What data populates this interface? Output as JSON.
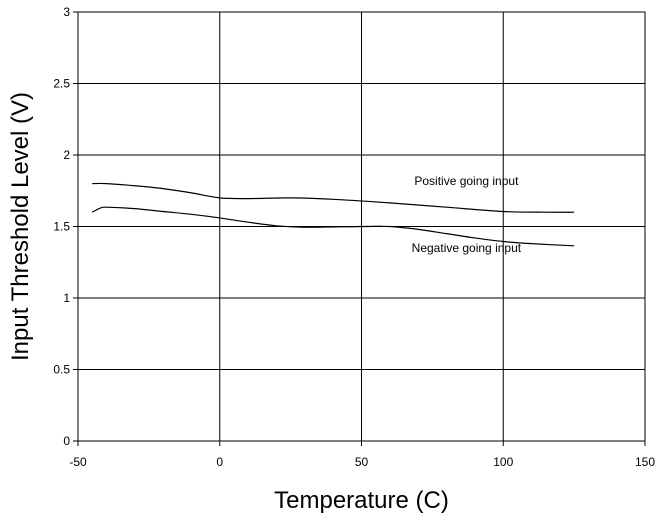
{
  "chart_data": {
    "type": "line",
    "xlabel": "Temperature (C)",
    "ylabel": "Input Threshold Level (V)",
    "xlim": [
      -50,
      150
    ],
    "ylim": [
      0,
      3
    ],
    "xticks": [
      "-50",
      "0",
      "50",
      "100",
      "150"
    ],
    "yticks": [
      "0",
      "0.5",
      "1",
      "1.5",
      "2",
      "2.5",
      "3"
    ],
    "grid": true,
    "series": [
      {
        "name": "Positive going input",
        "x": [
          -45,
          -40,
          -30,
          -20,
          -10,
          0,
          10,
          25,
          40,
          60,
          80,
          100,
          115,
          125
        ],
        "y": [
          1.8,
          1.8,
          1.785,
          1.765,
          1.735,
          1.7,
          1.695,
          1.7,
          1.69,
          1.665,
          1.635,
          1.605,
          1.6,
          1.6
        ]
      },
      {
        "name": "Negative going input",
        "x": [
          -45,
          -42,
          -40,
          -30,
          -20,
          -10,
          0,
          10,
          20,
          30,
          50,
          60,
          70,
          80,
          90,
          100,
          110,
          125
        ],
        "y": [
          1.6,
          1.63,
          1.635,
          1.625,
          1.605,
          1.585,
          1.56,
          1.53,
          1.505,
          1.495,
          1.5,
          1.5,
          1.48,
          1.45,
          1.42,
          1.395,
          1.38,
          1.365
        ]
      }
    ],
    "annotations": [
      {
        "text": "Positive going input",
        "x": 87,
        "y": 1.79
      },
      {
        "text": "Negative going input",
        "x": 87,
        "y": 1.32
      }
    ]
  }
}
